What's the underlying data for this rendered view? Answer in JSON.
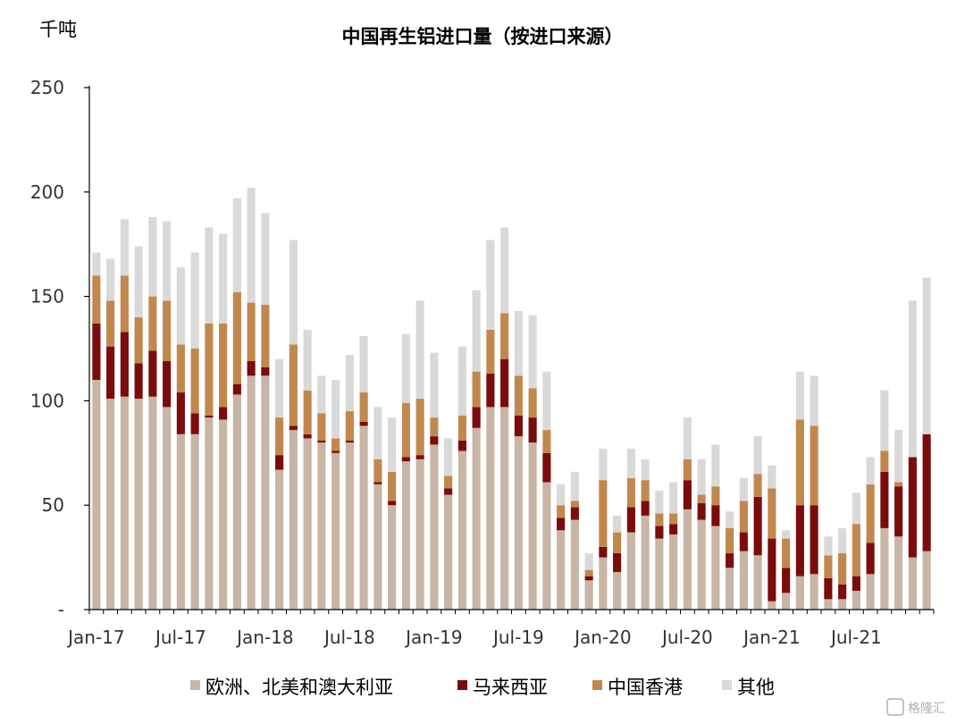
{
  "chart_data": {
    "type": "bar",
    "stacked": true,
    "title": "中国再生铝进口量（按进口来源）",
    "unit": "千吨",
    "ylim": [
      0,
      250
    ],
    "yticks": [
      "-",
      "50",
      "100",
      "150",
      "200",
      "250"
    ],
    "ytick_values": [
      0,
      50,
      100,
      150,
      200,
      250
    ],
    "x_tick_labels": [
      "Jan-17",
      "Jul-17",
      "Jan-18",
      "Jul-18",
      "Jan-19",
      "Jul-19",
      "Jan-20",
      "Jul-20",
      "Jan-21",
      "Jul-21"
    ],
    "x_tick_index": [
      0,
      6,
      12,
      18,
      24,
      30,
      36,
      42,
      48,
      54
    ],
    "categories": [
      "2017-01",
      "2017-02",
      "2017-03",
      "2017-04",
      "2017-05",
      "2017-06",
      "2017-07",
      "2017-08",
      "2017-09",
      "2017-10",
      "2017-11",
      "2017-12",
      "2018-01",
      "2018-02",
      "2018-03",
      "2018-04",
      "2018-05",
      "2018-06",
      "2018-07",
      "2018-08",
      "2018-09",
      "2018-10",
      "2018-11",
      "2018-12",
      "2019-01",
      "2019-02",
      "2019-03",
      "2019-04",
      "2019-05",
      "2019-06",
      "2019-07",
      "2019-08",
      "2019-09",
      "2019-10",
      "2019-11",
      "2019-12",
      "2020-01",
      "2020-02",
      "2020-03",
      "2020-04",
      "2020-05",
      "2020-06",
      "2020-07",
      "2020-08",
      "2020-09",
      "2020-10",
      "2020-11",
      "2020-12",
      "2021-01",
      "2021-02",
      "2021-03",
      "2021-04",
      "2021-05",
      "2021-06",
      "2021-07",
      "2021-08",
      "2021-09",
      "2021-10",
      "2021-11",
      "2021-12"
    ],
    "legend_position": "bottom",
    "grid": false,
    "series": [
      {
        "name": "欧洲、北美和澳大利亚",
        "color": "#c8b5a6",
        "values": [
          110,
          101,
          102,
          101,
          102,
          97,
          84,
          84,
          92,
          91,
          103,
          112,
          112,
          67,
          86,
          82,
          80,
          75,
          80,
          88,
          60,
          50,
          71,
          72,
          79,
          55,
          76,
          87,
          97,
          97,
          83,
          80,
          61,
          38,
          43,
          14,
          25,
          18,
          37,
          45,
          34,
          36,
          48,
          43,
          40,
          20,
          28,
          26,
          4,
          8,
          16,
          17,
          5,
          5,
          9,
          17,
          39,
          35,
          25,
          28
        ]
      },
      {
        "name": "马来西亚",
        "color": "#7a0c0c",
        "values": [
          27,
          25,
          31,
          17,
          22,
          22,
          20,
          10,
          1,
          6,
          5,
          7,
          4,
          7,
          2,
          2,
          1,
          1,
          1,
          2,
          1,
          2,
          2,
          2,
          4,
          3,
          5,
          10,
          16,
          23,
          10,
          12,
          14,
          6,
          6,
          2,
          5,
          9,
          12,
          7,
          6,
          5,
          14,
          8,
          10,
          7,
          9,
          28,
          30,
          12,
          34,
          33,
          10,
          7,
          7,
          15,
          27,
          24,
          48,
          56
        ]
      },
      {
        "name": "中国香港",
        "color": "#c1884e",
        "values": [
          23,
          22,
          27,
          22,
          26,
          29,
          23,
          31,
          44,
          40,
          44,
          28,
          30,
          18,
          39,
          21,
          13,
          6,
          14,
          14,
          11,
          14,
          26,
          27,
          9,
          6,
          12,
          17,
          21,
          22,
          19,
          14,
          11,
          6,
          3,
          3,
          32,
          10,
          14,
          10,
          6,
          5,
          10,
          4,
          9,
          12,
          15,
          11,
          24,
          14,
          41,
          38,
          11,
          15,
          25,
          28,
          10,
          2,
          0,
          0
        ]
      },
      {
        "name": "其他",
        "color": "#d9d9d9",
        "values": [
          11,
          20,
          27,
          34,
          38,
          38,
          37,
          46,
          46,
          43,
          45,
          55,
          44,
          28,
          50,
          29,
          18,
          28,
          27,
          27,
          25,
          26,
          33,
          47,
          31,
          18,
          33,
          39,
          43,
          41,
          31,
          35,
          28,
          10,
          14,
          8,
          15,
          8,
          14,
          10,
          11,
          15,
          20,
          17,
          20,
          8,
          11,
          18,
          11,
          4,
          23,
          24,
          9,
          12,
          15,
          13,
          29,
          25,
          75,
          75
        ]
      }
    ]
  },
  "watermark": "格隆汇"
}
